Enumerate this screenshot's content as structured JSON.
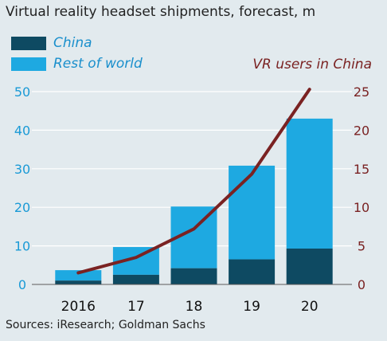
{
  "title": "Virtual reality headset shipments, forecast, m",
  "source": "Sources: iResearch; Goldman Sachs",
  "colors": {
    "china": "#0e4a62",
    "rest_of_world": "#1ea9e1",
    "line": "#7a2222",
    "grid": "#ffffff",
    "background": "#e2eaee"
  },
  "legend": [
    {
      "label": "China",
      "color": "#0e4a62",
      "text_color": "#1a8fcc"
    },
    {
      "label": "Rest of world",
      "color": "#1ea9e1",
      "text_color": "#1a8fcc"
    }
  ],
  "chart_data": {
    "type": "bar",
    "stacked": true,
    "categories": [
      "2016",
      "17",
      "18",
      "19",
      "20"
    ],
    "series": [
      {
        "name": "China",
        "values": [
          1.0,
          2.5,
          4.2,
          6.5,
          9.3
        ]
      },
      {
        "name": "Rest of world",
        "values": [
          2.7,
          7.2,
          16.0,
          24.3,
          33.7
        ]
      }
    ],
    "line_series": {
      "name": "VR users in China",
      "axis": "right",
      "values": [
        1.5,
        3.5,
        7.2,
        14.3,
        25.3
      ]
    },
    "left_axis": {
      "min": 0,
      "max": 50,
      "ticks": [
        0,
        10,
        20,
        30,
        40,
        50
      ]
    },
    "right_axis": {
      "min": 0,
      "max": 25,
      "ticks": [
        0,
        5,
        10,
        15,
        20,
        25
      ]
    },
    "grid": true,
    "legend_placement": "top-left"
  }
}
